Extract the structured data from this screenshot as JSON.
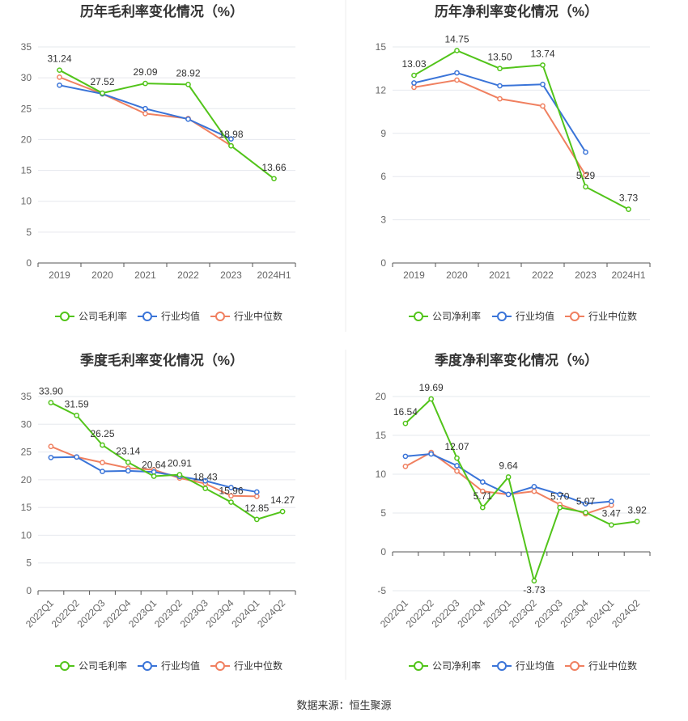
{
  "source_text": "数据来源：恒生聚源",
  "colors": {
    "company": "#52c41a",
    "avg": "#3a74d8",
    "median": "#f08060",
    "grid": "#e6e8ee",
    "axis": "#555555"
  },
  "chart_data": [
    {
      "type": "line",
      "title": "历年毛利率变化情况（%）",
      "categories": [
        "2019",
        "2020",
        "2021",
        "2022",
        "2023",
        "2024H1"
      ],
      "ylim": [
        0,
        35
      ],
      "yticks": [
        0,
        5,
        10,
        15,
        20,
        25,
        30,
        35
      ],
      "rotate_x": false,
      "grid": true,
      "legend": "bottom",
      "series": [
        {
          "name": "公司毛利率",
          "key": "company",
          "values": [
            31.24,
            27.52,
            29.09,
            28.92,
            18.98,
            13.66
          ],
          "labels": [
            "31.24",
            "27.52",
            "29.09",
            "28.92",
            "18.98",
            "13.66"
          ]
        },
        {
          "name": "行业均值",
          "key": "avg",
          "values": [
            28.8,
            27.4,
            25.0,
            23.3,
            20.1,
            null
          ]
        },
        {
          "name": "行业中位数",
          "key": "median",
          "values": [
            30.1,
            27.4,
            24.2,
            23.4,
            19.0,
            null
          ]
        }
      ]
    },
    {
      "type": "line",
      "title": "历年净利率变化情况（%）",
      "categories": [
        "2019",
        "2020",
        "2021",
        "2022",
        "2023",
        "2024H1"
      ],
      "ylim": [
        0,
        15
      ],
      "yticks": [
        0,
        3,
        6,
        9,
        12,
        15
      ],
      "rotate_x": false,
      "grid": true,
      "legend": "bottom",
      "series": [
        {
          "name": "公司净利率",
          "key": "company",
          "values": [
            13.03,
            14.75,
            13.5,
            13.74,
            5.29,
            3.73
          ],
          "labels": [
            "13.03",
            "14.75",
            "13.50",
            "13.74",
            "5.29",
            "3.73"
          ]
        },
        {
          "name": "行业均值",
          "key": "avg",
          "values": [
            12.5,
            13.2,
            12.3,
            12.4,
            7.7,
            null
          ]
        },
        {
          "name": "行业中位数",
          "key": "median",
          "values": [
            12.2,
            12.7,
            11.4,
            10.9,
            6.1,
            null
          ]
        }
      ]
    },
    {
      "type": "line",
      "title": "季度毛利率变化情况（%）",
      "categories": [
        "2022Q1",
        "2022Q2",
        "2022Q3",
        "2022Q4",
        "2023Q1",
        "2023Q2",
        "2023Q3",
        "2023Q4",
        "2024Q1",
        "2024Q2"
      ],
      "ylim": [
        0,
        35
      ],
      "yticks": [
        0,
        5,
        10,
        15,
        20,
        25,
        30,
        35
      ],
      "rotate_x": true,
      "grid": true,
      "legend": "bottom",
      "series": [
        {
          "name": "公司毛利率",
          "key": "company",
          "values": [
            33.9,
            31.59,
            26.25,
            23.14,
            20.64,
            20.91,
            18.43,
            15.96,
            12.85,
            14.27
          ],
          "labels": [
            "33.90",
            "31.59",
            "26.25",
            "23.14",
            "20.64",
            "20.91",
            "18.43",
            "15.96",
            "12.85",
            "14.27"
          ]
        },
        {
          "name": "行业均值",
          "key": "avg",
          "values": [
            24.0,
            24.1,
            21.5,
            21.6,
            21.4,
            20.6,
            19.8,
            18.6,
            17.8,
            null
          ]
        },
        {
          "name": "行业中位数",
          "key": "median",
          "values": [
            26.0,
            24.1,
            23.1,
            22.1,
            21.8,
            20.3,
            19.3,
            17.1,
            17.0,
            null
          ]
        }
      ]
    },
    {
      "type": "line",
      "title": "季度净利率变化情况（%）",
      "categories": [
        "2022Q1",
        "2022Q2",
        "2022Q3",
        "2022Q4",
        "2023Q1",
        "2023Q2",
        "2023Q3",
        "2023Q4",
        "2024Q1",
        "2024Q2"
      ],
      "ylim": [
        -5,
        20
      ],
      "yticks": [
        -5,
        0,
        5,
        10,
        15,
        20
      ],
      "rotate_x": true,
      "grid": true,
      "legend": "bottom",
      "series": [
        {
          "name": "公司净利率",
          "key": "company",
          "values": [
            16.54,
            19.69,
            12.07,
            5.71,
            9.64,
            -3.73,
            5.7,
            5.07,
            3.47,
            3.92
          ],
          "labels": [
            "16.54",
            "19.69",
            "12.07",
            "5.71",
            "9.64",
            "-3.73",
            "5.70",
            "5.07",
            "3.47",
            "3.92"
          ]
        },
        {
          "name": "行业均值",
          "key": "avg",
          "values": [
            12.3,
            12.6,
            11.1,
            9.0,
            7.4,
            8.4,
            7.4,
            6.2,
            6.5,
            null
          ]
        },
        {
          "name": "行业中位数",
          "key": "median",
          "values": [
            11.0,
            12.8,
            10.4,
            7.8,
            7.4,
            7.8,
            6.1,
            4.9,
            6.0,
            null
          ]
        }
      ]
    }
  ]
}
